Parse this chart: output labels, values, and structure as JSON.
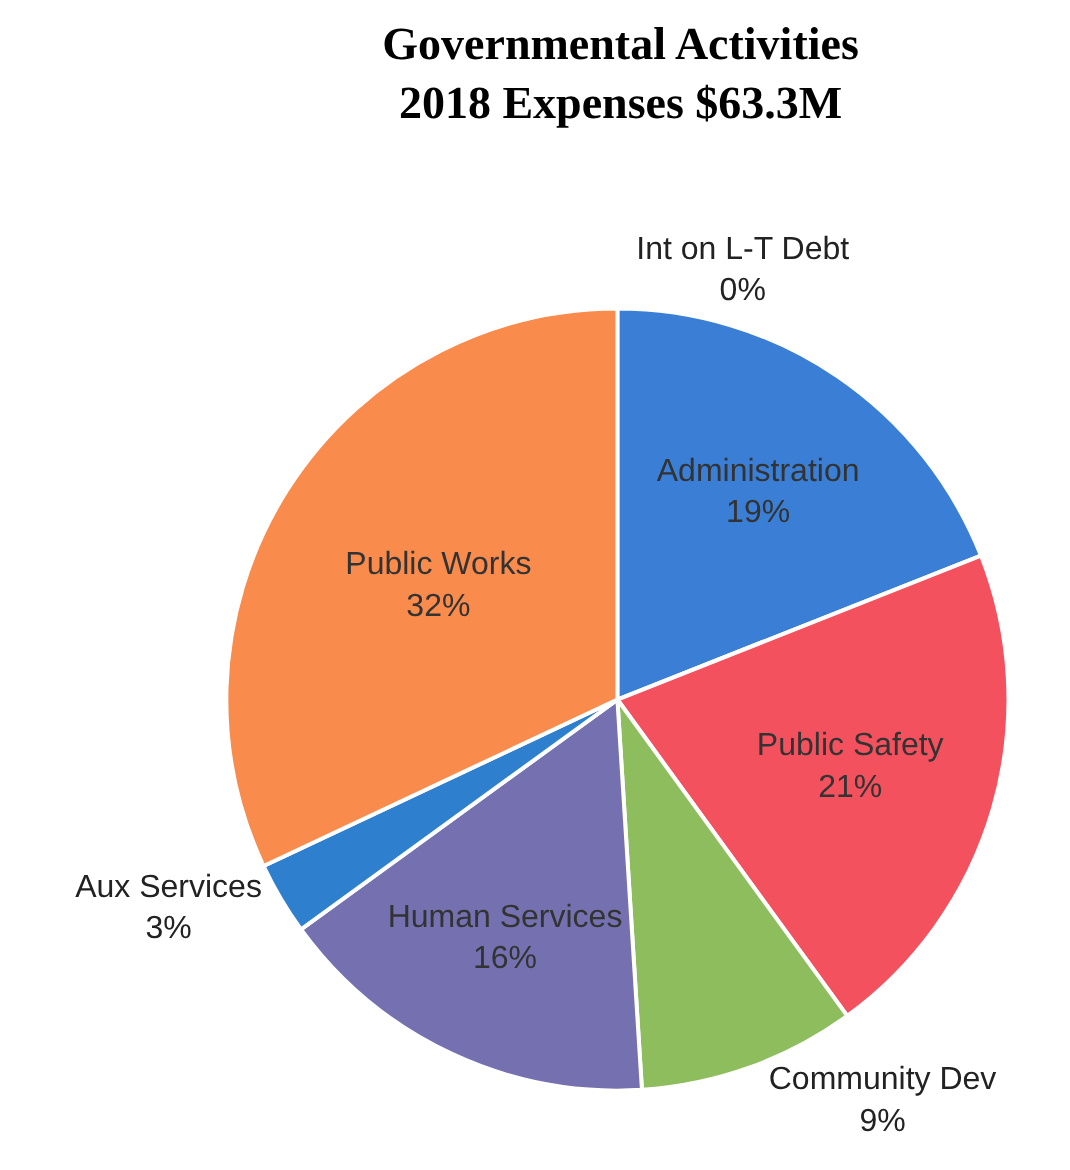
{
  "chart_data": {
    "type": "pie",
    "title": "Governmental Activities\n2018 Expenses $63.3M",
    "categories": [
      "Int on L-T Debt",
      "Administration",
      "Public Safety",
      "Community Dev",
      "Human Services",
      "Aux Services",
      "Public Works"
    ],
    "values": [
      0,
      19,
      21,
      9,
      16,
      3,
      32
    ],
    "value_labels": [
      "0%",
      "19%",
      "21%",
      "9%",
      "16%",
      "3%",
      "32%"
    ],
    "colors": [
      "#4472c4",
      "#3a7fd5",
      "#f4515e",
      "#8dbd5c",
      "#7570b0",
      "#2e80cf",
      "#f98b4c"
    ],
    "legend": false
  }
}
